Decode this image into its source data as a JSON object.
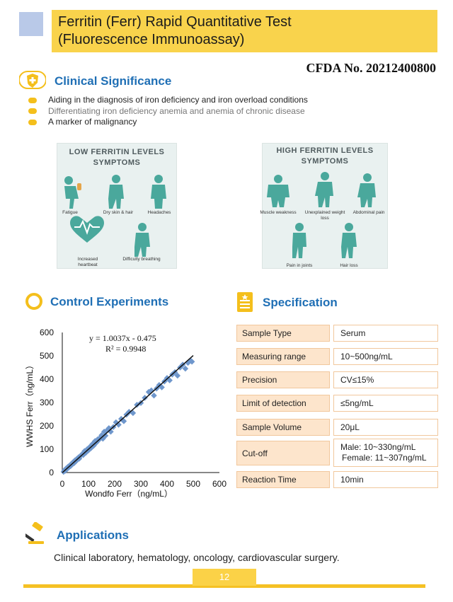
{
  "header": {
    "title_line1": "Ferritin (Ferr) Rapid Quantitative Test",
    "title_line2": "(Fluorescence Immunoassay)",
    "cfda": "CFDA No. 20212400800"
  },
  "clinical": {
    "title": "Clinical Significance",
    "bullets": [
      "Aiding in the diagnosis of iron deficiency and iron overload conditions",
      "Differentiating iron deficiency anemia and anemia of chronic disease",
      "A marker of malignancy"
    ]
  },
  "low_panel": {
    "title_line1": "LOW FERRITIN LEVELS",
    "title_line2": "SYMPTOMS",
    "symptoms": [
      "Fatigue",
      "Dry skin & hair",
      "Headaches",
      "Increased heartbeat",
      "Difficulty breathing"
    ]
  },
  "high_panel": {
    "title_line1": "HIGH FERRITIN LEVELS",
    "title_line2": "SYMPTOMS",
    "symptoms": [
      "Muscle weakness",
      "Unexplained weight loss",
      "Abdominal pain",
      "Pain in joints",
      "Hair loss"
    ]
  },
  "control": {
    "title": "Control Experiments"
  },
  "chart_data": {
    "type": "scatter",
    "title": "",
    "xlabel": "Wondfo Ferr（ng/mL）",
    "ylabel": "WWHS Ferr（ng/mL）",
    "xlim": [
      0,
      600
    ],
    "ylim": [
      0,
      600
    ],
    "xticks": [
      0,
      100,
      200,
      300,
      400,
      500,
      600
    ],
    "yticks": [
      0,
      100,
      200,
      300,
      400,
      500,
      600
    ],
    "equation": "y = 1.0037x - 0.475",
    "r2": "R² = 0.9948",
    "fit": {
      "slope": 1.0037,
      "intercept": -0.475,
      "x_range": [
        0,
        500
      ]
    },
    "series": [
      {
        "name": "samples",
        "x": [
          5,
          8,
          12,
          15,
          18,
          22,
          25,
          28,
          32,
          35,
          38,
          42,
          45,
          48,
          52,
          55,
          58,
          62,
          65,
          70,
          75,
          80,
          85,
          90,
          95,
          100,
          105,
          110,
          115,
          120,
          125,
          130,
          135,
          140,
          145,
          150,
          155,
          160,
          165,
          170,
          178,
          185,
          195,
          205,
          215,
          225,
          235,
          245,
          255,
          270,
          285,
          300,
          315,
          330,
          340,
          350,
          360,
          370,
          380,
          390,
          400,
          410,
          420,
          430,
          440,
          450,
          460,
          470,
          480,
          490,
          495
        ],
        "y": [
          3,
          10,
          8,
          18,
          15,
          25,
          22,
          30,
          28,
          38,
          35,
          45,
          40,
          52,
          48,
          58,
          55,
          65,
          60,
          72,
          78,
          75,
          92,
          85,
          100,
          95,
          110,
          105,
          122,
          115,
          135,
          128,
          142,
          140,
          150,
          160,
          145,
          175,
          158,
          180,
          190,
          175,
          195,
          215,
          205,
          230,
          220,
          248,
          260,
          255,
          290,
          298,
          320,
          345,
          352,
          330,
          360,
          375,
          365,
          390,
          405,
          395,
          420,
          430,
          415,
          450,
          462,
          445,
          470,
          480,
          475
        ]
      }
    ]
  },
  "spec": {
    "title": "Specification",
    "rows": [
      {
        "label": "Sample Type",
        "value": "Serum"
      },
      {
        "label": "Measuring range",
        "value": "10~500ng/mL"
      },
      {
        "label": "Precision",
        "value": "CV≤15%"
      },
      {
        "label": "Limit of detection",
        "value": "≤5ng/mL"
      },
      {
        "label": "Sample Volume",
        "value": "20μL"
      },
      {
        "label": "Cut-off",
        "value_line1": "Male: 10~330ng/mL",
        "value_line2": "Female: 11~307ng/mL"
      },
      {
        "label": "Reaction Time",
        "value": "10min"
      }
    ]
  },
  "applications": {
    "title": "Applications",
    "text": "Clinical laboratory, hematology, oncology, cardiovascular surgery."
  },
  "footer": {
    "page": "12"
  },
  "colors": {
    "accent_yellow": "#f9d34c",
    "heading_blue": "#1f6fb5",
    "spec_fill": "#fde5cc",
    "figure_teal": "#4aa89c"
  }
}
